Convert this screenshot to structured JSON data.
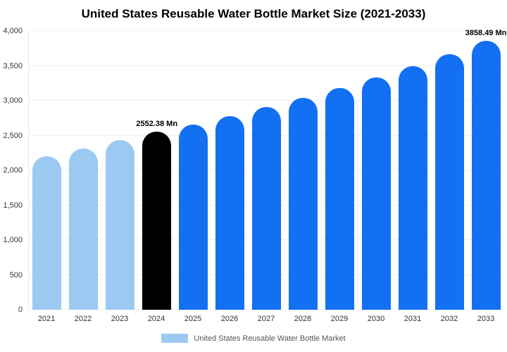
{
  "title": "United States Reusable Water Bottle Market Size (2021-2033)",
  "legend": {
    "label": "United States Reusable Water Bottle Market",
    "swatch_color": "#9CC9F2"
  },
  "colors": {
    "historic": "#9CC9F2",
    "base_year": "#000000",
    "forecast": "#1470F2"
  },
  "chart_data": {
    "type": "bar",
    "title": "United States Reusable Water Bottle Market Size (2021-2033)",
    "unit": "Mn",
    "categories": [
      "2021",
      "2022",
      "2023",
      "2024",
      "2025",
      "2026",
      "2027",
      "2028",
      "2029",
      "2030",
      "2031",
      "2032",
      "2033"
    ],
    "values": [
      2200,
      2310,
      2430,
      2552.38,
      2660,
      2780,
      2910,
      3040,
      3180,
      3330,
      3500,
      3670,
      3858.49
    ],
    "bar_colors": [
      "#9CC9F2",
      "#9CC9F2",
      "#9CC9F2",
      "#000000",
      "#1470F2",
      "#1470F2",
      "#1470F2",
      "#1470F2",
      "#1470F2",
      "#1470F2",
      "#1470F2",
      "#1470F2",
      "#1470F2"
    ],
    "data_labels": [
      {
        "index": 3,
        "text": "2552.38 Mn"
      },
      {
        "index": 12,
        "text": "3858.49 Mn"
      }
    ],
    "xlabel": "",
    "ylabel": "",
    "ylim": [
      0,
      4000
    ],
    "ytick_step": 500,
    "ytick_labels": [
      "0",
      "500",
      "1,000",
      "1,500",
      "2,000",
      "2,500",
      "3,000",
      "3,500",
      "4,000"
    ],
    "grid": true,
    "legend_position": "bottom"
  }
}
